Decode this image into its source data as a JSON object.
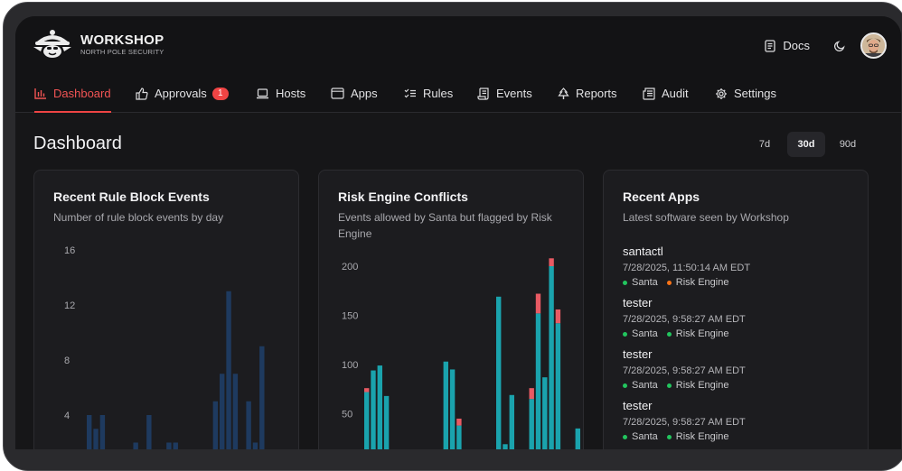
{
  "brand": {
    "name": "WORKSHOP",
    "subtitle": "NORTH POLE SECURITY"
  },
  "header": {
    "docs_label": "Docs",
    "theme_icon": "moon-icon",
    "avatar": "user-avatar"
  },
  "nav": [
    {
      "label": "Dashboard",
      "icon": "bar-chart-icon",
      "active": true
    },
    {
      "label": "Approvals",
      "icon": "thumbs-up-icon",
      "badge": "1"
    },
    {
      "label": "Hosts",
      "icon": "laptop-icon"
    },
    {
      "label": "Apps",
      "icon": "app-window-icon"
    },
    {
      "label": "Rules",
      "icon": "list-checks-icon"
    },
    {
      "label": "Events",
      "icon": "scroll-icon"
    },
    {
      "label": "Reports",
      "icon": "tree-icon"
    },
    {
      "label": "Audit",
      "icon": "newspaper-icon"
    },
    {
      "label": "Settings",
      "icon": "gear-icon"
    }
  ],
  "page": {
    "title": "Dashboard"
  },
  "range": {
    "options": [
      "7d",
      "30d",
      "90d"
    ],
    "selected": "30d"
  },
  "cards": {
    "rule_block": {
      "title": "Recent Rule Block Events",
      "subtitle": "Number of rule block events by day"
    },
    "risk": {
      "title": "Risk Engine Conflicts",
      "subtitle": "Events allowed by Santa but flagged by Risk Engine"
    },
    "apps": {
      "title": "Recent Apps",
      "subtitle": "Latest software seen by Workshop"
    }
  },
  "recent_apps": [
    {
      "name": "santactl",
      "time": "7/28/2025, 11:50:14 AM EDT",
      "tags": [
        {
          "label": "Santa",
          "color": "#22c55e"
        },
        {
          "label": "Risk Engine",
          "color": "#f97316"
        }
      ]
    },
    {
      "name": "tester",
      "time": "7/28/2025, 9:58:27 AM EDT",
      "tags": [
        {
          "label": "Santa",
          "color": "#22c55e"
        },
        {
          "label": "Risk Engine",
          "color": "#22c55e"
        }
      ]
    },
    {
      "name": "tester",
      "time": "7/28/2025, 9:58:27 AM EDT",
      "tags": [
        {
          "label": "Santa",
          "color": "#22c55e"
        },
        {
          "label": "Risk Engine",
          "color": "#22c55e"
        }
      ]
    },
    {
      "name": "tester",
      "time": "7/28/2025, 9:58:27 AM EDT",
      "tags": [
        {
          "label": "Santa",
          "color": "#22c55e"
        },
        {
          "label": "Risk Engine",
          "color": "#22c55e"
        }
      ]
    }
  ],
  "chart_data": [
    {
      "type": "bar",
      "title": "Recent Rule Block Events",
      "subtitle": "Number of rule block events by day",
      "ylim": [
        0,
        16
      ],
      "yticks": [
        "16",
        "12",
        "8",
        "4"
      ],
      "grid": false,
      "color": "#1e3a5f",
      "values": [
        4,
        3,
        4,
        0,
        0,
        0,
        0,
        2,
        1,
        4,
        1,
        0,
        2,
        2,
        0,
        1,
        0,
        0,
        0,
        5,
        7,
        13,
        7,
        0,
        5,
        2,
        9
      ]
    },
    {
      "type": "bar",
      "title": "Risk Engine Conflicts",
      "subtitle": "Events allowed by Santa but flagged by Risk Engine",
      "ylim": [
        0,
        200
      ],
      "yticks": [
        "200",
        "150",
        "100",
        "50"
      ],
      "grid": false,
      "series": [
        {
          "name": "",
          "color": "#1aa3ad",
          "values": [
            72,
            94,
            99,
            68,
            0,
            0,
            0,
            0,
            0,
            0,
            0,
            0,
            103,
            95,
            38,
            0,
            0,
            0,
            0,
            12,
            169,
            19,
            69,
            12,
            0,
            65,
            152,
            87,
            200,
            142,
            13,
            0,
            35
          ]
        },
        {
          "name": "",
          "color": "#e85a63",
          "values": [
            4,
            0,
            0,
            0,
            0,
            0,
            0,
            0,
            0,
            0,
            0,
            0,
            0,
            0,
            7,
            0,
            0,
            0,
            0,
            0,
            0,
            0,
            0,
            0,
            0,
            11,
            20,
            0,
            8,
            14,
            0,
            0,
            0
          ]
        }
      ]
    }
  ]
}
